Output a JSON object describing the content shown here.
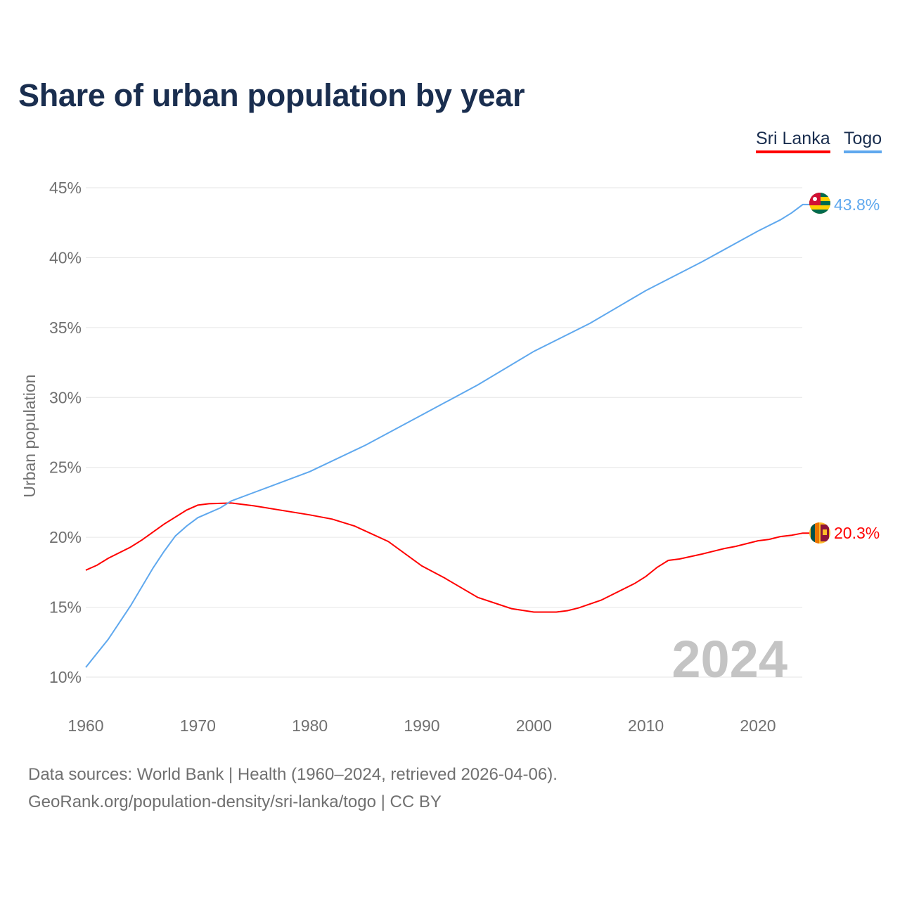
{
  "chart_data": {
    "type": "line",
    "title": "Share of urban population by year",
    "xlabel": "",
    "ylabel": "Urban population",
    "xlim": [
      1960,
      2024
    ],
    "ylim": [
      10,
      45
    ],
    "yticks": [
      10,
      15,
      20,
      25,
      30,
      35,
      40,
      45
    ],
    "ytick_labels": [
      "10%",
      "15%",
      "20%",
      "25%",
      "30%",
      "35%",
      "40%",
      "45%"
    ],
    "xticks": [
      1960,
      1970,
      1980,
      1990,
      2000,
      2010,
      2020
    ],
    "xtick_labels": [
      "1960",
      "1970",
      "1980",
      "1990",
      "2000",
      "2010",
      "2020"
    ],
    "grid": true,
    "legend_placement": "top-right",
    "year_watermark": "2024",
    "series": [
      {
        "name": "Sri Lanka",
        "color": "#ff0000",
        "end_label": "20.3%",
        "flag_icon": "sri-lanka-flag",
        "x": [
          1960,
          1961,
          1962,
          1964,
          1965,
          1967,
          1969,
          1970,
          1971,
          1973,
          1975,
          1980,
          1982,
          1984,
          1987,
          1990,
          1992,
          1995,
          1998,
          2000,
          2002,
          2003,
          2004,
          2006,
          2009,
          2010,
          2011,
          2012,
          2013,
          2015,
          2017,
          2018,
          2020,
          2021,
          2022,
          2023,
          2024
        ],
        "y": [
          17.65,
          18.0,
          18.5,
          19.3,
          19.8,
          20.95,
          21.95,
          22.3,
          22.4,
          22.45,
          22.25,
          21.6,
          21.3,
          20.8,
          19.7,
          17.95,
          17.1,
          15.7,
          14.9,
          14.65,
          14.65,
          14.75,
          14.95,
          15.5,
          16.7,
          17.2,
          17.85,
          18.35,
          18.45,
          18.8,
          19.2,
          19.35,
          19.75,
          19.85,
          20.05,
          20.15,
          20.3
        ]
      },
      {
        "name": "Togo",
        "color": "#5fa8ee",
        "end_label": "43.8%",
        "flag_icon": "togo-flag",
        "x": [
          1960,
          1962,
          1964,
          1966,
          1967,
          1968,
          1969,
          1970,
          1972,
          1973,
          1975,
          1980,
          1985,
          1990,
          1995,
          2000,
          2005,
          2010,
          2015,
          2020,
          2022,
          2023,
          2024
        ],
        "y": [
          10.7,
          12.7,
          15.1,
          17.8,
          19.0,
          20.1,
          20.8,
          21.4,
          22.1,
          22.6,
          23.2,
          24.7,
          26.6,
          28.75,
          30.9,
          33.3,
          35.3,
          37.65,
          39.7,
          41.9,
          42.7,
          43.2,
          43.8
        ]
      }
    ]
  },
  "footer": {
    "line1": "Data sources: World Bank | Health (1960–2024, retrieved 2026-04-06).",
    "line2": "GeoRank.org/population-density/sri-lanka/togo | CC BY"
  }
}
